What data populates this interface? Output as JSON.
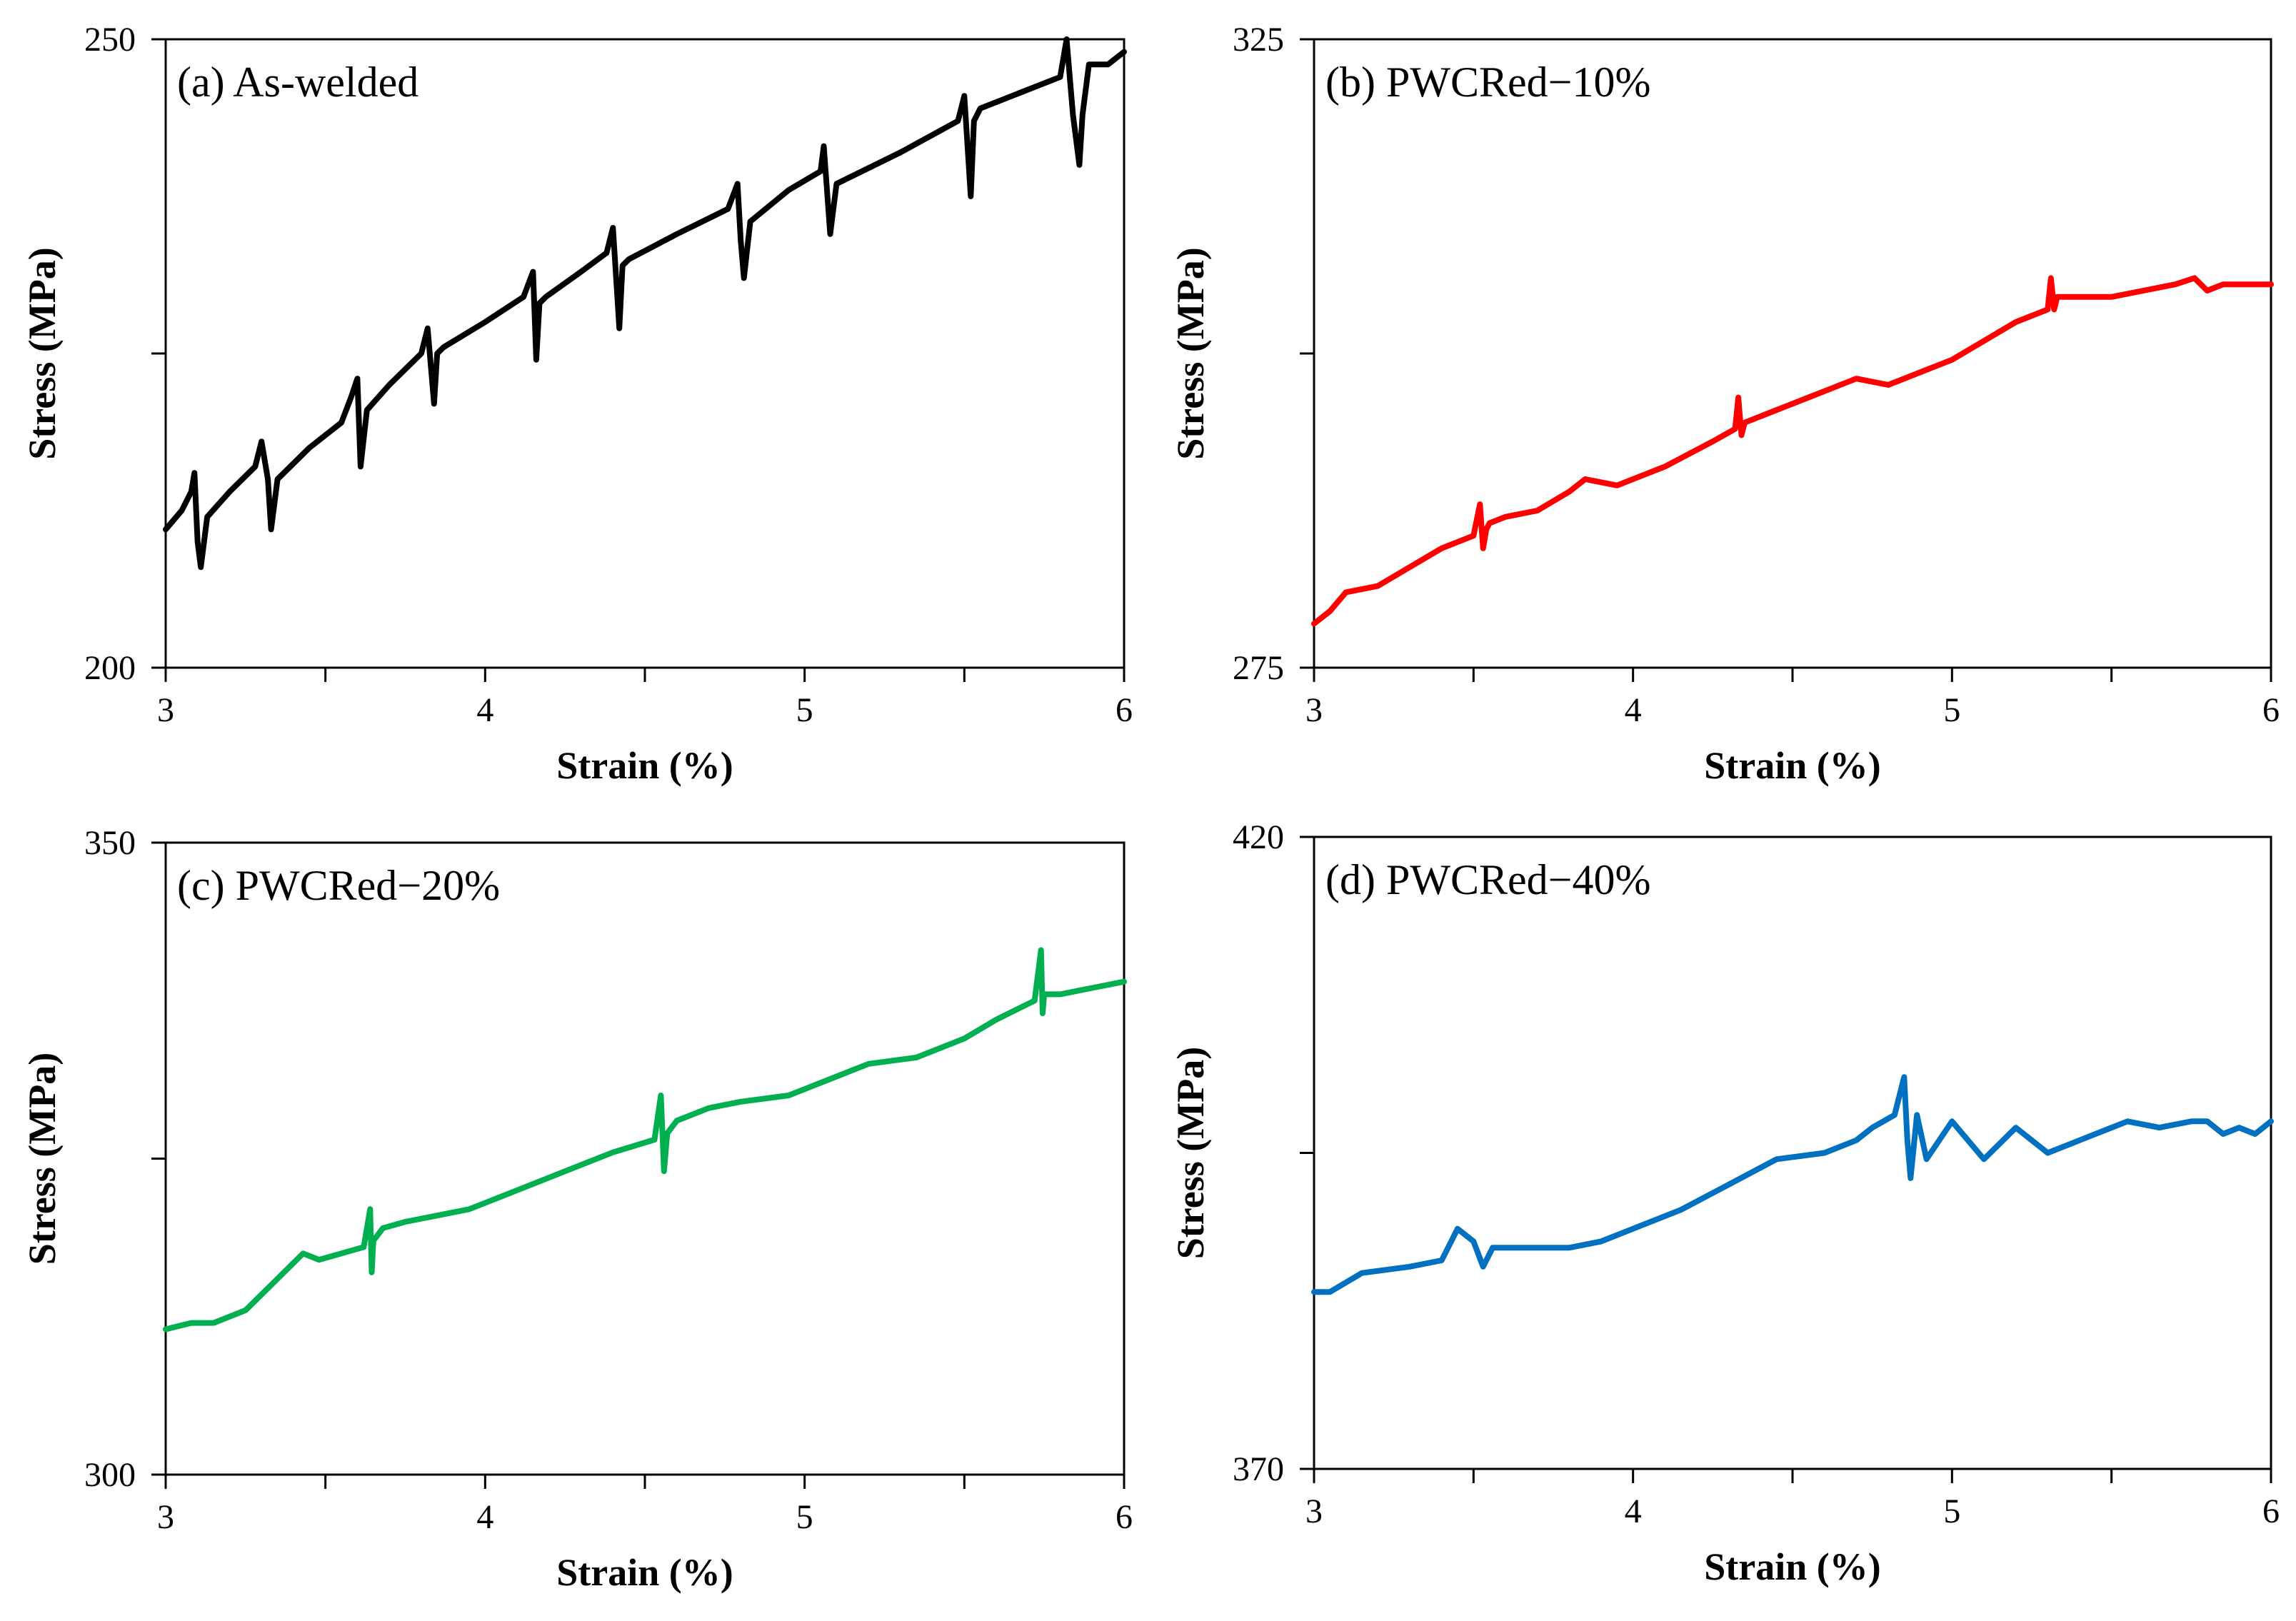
{
  "chart_data": [
    {
      "type": "line",
      "panel_label": "(a) As-welded",
      "xlabel": "Strain (%)",
      "ylabel": "Stress (MPa)",
      "xlim": [
        3,
        6
      ],
      "ylim": [
        200,
        250
      ],
      "x_ticks": [
        3,
        3.5,
        4,
        4.5,
        5,
        5.5,
        6
      ],
      "x_tick_labels": [
        "3",
        "",
        "4",
        "",
        "5",
        "",
        "6"
      ],
      "y_ticks": [
        200,
        225,
        250
      ],
      "y_tick_labels": [
        "200",
        "",
        "250"
      ],
      "color": "#000000",
      "series": [
        {
          "x": [
            3.0,
            3.05,
            3.08,
            3.09,
            3.1,
            3.11,
            3.13,
            3.2,
            3.28,
            3.3,
            3.32,
            3.33,
            3.35,
            3.45,
            3.55,
            3.58,
            3.6,
            3.61,
            3.63,
            3.7,
            3.8,
            3.82,
            3.84,
            3.85,
            3.87,
            4.0,
            4.12,
            4.15,
            4.16,
            4.17,
            4.19,
            4.3,
            4.38,
            4.4,
            4.42,
            4.43,
            4.45,
            4.6,
            4.76,
            4.79,
            4.8,
            4.81,
            4.83,
            4.95,
            5.05,
            5.06,
            5.08,
            5.1,
            5.3,
            5.48,
            5.5,
            5.52,
            5.53,
            5.55,
            5.7,
            5.8,
            5.82,
            5.84,
            5.86,
            5.87,
            5.89,
            5.95,
            6.0
          ],
          "y": [
            211,
            212.5,
            214,
            215.5,
            210,
            208,
            212,
            214,
            216,
            218,
            215,
            211,
            215,
            217.5,
            219.5,
            221.5,
            223,
            216,
            220.5,
            222.5,
            225,
            227,
            221,
            225,
            225.5,
            227.5,
            229.5,
            231.5,
            224.5,
            229,
            229.5,
            231.5,
            233,
            235,
            227,
            232,
            232.5,
            234.5,
            236.5,
            238.5,
            234,
            231,
            235.5,
            238,
            239.5,
            241.5,
            234.5,
            238.5,
            241,
            243.5,
            245.5,
            237.5,
            243.5,
            244.5,
            246,
            247,
            250,
            244,
            240,
            244,
            248,
            248,
            249
          ]
        }
      ]
    },
    {
      "type": "line",
      "panel_label": "(b) PWCRed−10%",
      "xlabel": "Strain (%)",
      "ylabel": "Stress (MPa)",
      "xlim": [
        3,
        6
      ],
      "ylim": [
        275,
        325
      ],
      "x_ticks": [
        3,
        3.5,
        4,
        4.5,
        5,
        5.5,
        6
      ],
      "x_tick_labels": [
        "3",
        "",
        "4",
        "",
        "5",
        "",
        "6"
      ],
      "y_ticks": [
        275,
        300,
        325
      ],
      "y_tick_labels": [
        "275",
        "",
        "325"
      ],
      "color": "#ff0000",
      "series": [
        {
          "x": [
            3.0,
            3.05,
            3.1,
            3.2,
            3.3,
            3.4,
            3.5,
            3.52,
            3.53,
            3.54,
            3.55,
            3.6,
            3.7,
            3.8,
            3.85,
            3.95,
            4.1,
            4.25,
            4.32,
            4.33,
            4.34,
            4.35,
            4.4,
            4.5,
            4.6,
            4.7,
            4.8,
            4.9,
            5.0,
            5.1,
            5.2,
            5.3,
            5.31,
            5.32,
            5.33,
            5.35,
            5.4,
            5.5,
            5.6,
            5.7,
            5.76,
            5.8,
            5.85,
            5.9,
            6.0
          ],
          "y": [
            278.5,
            279.5,
            281,
            281.5,
            283,
            284.5,
            285.5,
            288,
            284.5,
            286,
            286.5,
            287,
            287.5,
            289,
            290,
            289.5,
            291,
            293,
            294,
            296.5,
            293.5,
            294.5,
            295,
            296,
            297,
            298,
            297.5,
            298.5,
            299.5,
            301,
            302.5,
            303.5,
            306,
            303.5,
            304.5,
            304.5,
            304.5,
            304.5,
            305,
            305.5,
            306,
            305,
            305.5,
            305.5,
            305.5
          ]
        }
      ]
    },
    {
      "type": "line",
      "panel_label": "(c) PWCRed−20%",
      "xlabel": "Strain (%)",
      "ylabel": "Stress (MPa)",
      "xlim": [
        3,
        6
      ],
      "ylim": [
        300,
        350
      ],
      "x_ticks": [
        3,
        3.5,
        4,
        4.5,
        5,
        5.5,
        6
      ],
      "x_tick_labels": [
        "3",
        "",
        "4",
        "",
        "5",
        "",
        "6"
      ],
      "y_ticks": [
        300,
        325,
        350
      ],
      "y_tick_labels": [
        "300",
        "",
        "350"
      ],
      "color": "#00b050",
      "series": [
        {
          "x": [
            3.0,
            3.08,
            3.15,
            3.25,
            3.35,
            3.43,
            3.48,
            3.55,
            3.62,
            3.64,
            3.645,
            3.65,
            3.68,
            3.75,
            3.85,
            3.95,
            4.1,
            4.25,
            4.4,
            4.53,
            4.55,
            4.56,
            4.57,
            4.6,
            4.7,
            4.8,
            4.95,
            5.1,
            5.2,
            5.35,
            5.5,
            5.6,
            5.68,
            5.72,
            5.74,
            5.745,
            5.75,
            5.8,
            5.9,
            6.0
          ],
          "y": [
            311.5,
            312,
            312,
            313,
            315.5,
            317.5,
            317,
            317.5,
            318,
            321,
            316,
            318.5,
            319.5,
            320,
            320.5,
            321,
            322.5,
            324,
            325.5,
            326.5,
            330,
            324,
            327,
            328,
            329,
            329.5,
            330,
            331.5,
            332.5,
            333,
            334.5,
            336,
            337,
            337.5,
            341.5,
            336.5,
            338,
            338,
            338.5,
            339
          ]
        }
      ]
    },
    {
      "type": "line",
      "panel_label": "(d) PWCRed−40%",
      "xlabel": "Strain (%)",
      "ylabel": "Stress (MPa)",
      "xlim": [
        3,
        6
      ],
      "ylim": [
        370,
        420
      ],
      "x_ticks": [
        3,
        3.5,
        4,
        4.5,
        5,
        5.5,
        6
      ],
      "x_tick_labels": [
        "3",
        "",
        "4",
        "",
        "5",
        "",
        "6"
      ],
      "y_ticks": [
        370,
        395,
        420
      ],
      "y_tick_labels": [
        "370",
        "",
        "420"
      ],
      "color": "#0070c0",
      "series": [
        {
          "x": [
            3.0,
            3.05,
            3.15,
            3.3,
            3.4,
            3.45,
            3.5,
            3.53,
            3.56,
            3.65,
            3.8,
            3.9,
            4.0,
            4.15,
            4.3,
            4.45,
            4.6,
            4.7,
            4.75,
            4.82,
            4.85,
            4.86,
            4.87,
            4.89,
            4.92,
            5.0,
            5.1,
            5.2,
            5.3,
            5.4,
            5.5,
            5.55,
            5.65,
            5.75,
            5.8,
            5.85,
            5.9,
            5.95,
            6.0
          ],
          "y": [
            384,
            384,
            385.5,
            386,
            386.5,
            389,
            388,
            386,
            387.5,
            387.5,
            387.5,
            388,
            389,
            390.5,
            392.5,
            394.5,
            395,
            396,
            397,
            398,
            401,
            396,
            393,
            398,
            394.5,
            397.5,
            394.5,
            397,
            395,
            396,
            397,
            397.5,
            397,
            397.5,
            397.5,
            396.5,
            397,
            396.5,
            397.5
          ]
        }
      ]
    }
  ]
}
